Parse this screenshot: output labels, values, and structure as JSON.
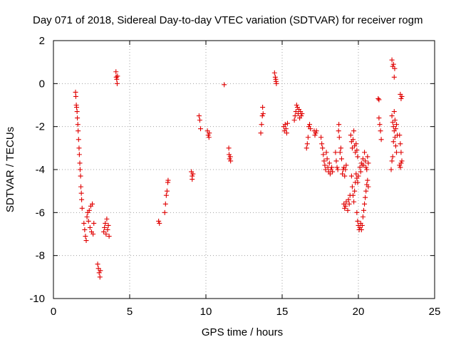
{
  "chart_data": {
    "type": "scatter",
    "title": "Day 071 of 2018, Sidereal Day-to-day VTEC variation (SDTVAR) for receiver rogm",
    "xlabel": "GPS time / hours",
    "ylabel": "SDTVAR / TECUs",
    "xlim": [
      0,
      25
    ],
    "ylim": [
      -10,
      2
    ],
    "xticks": [
      0,
      5,
      10,
      15,
      20,
      25
    ],
    "yticks": [
      -10,
      -8,
      -6,
      -4,
      -2,
      0,
      2
    ],
    "xtick_labels": [
      "0",
      "5",
      "10",
      "15",
      "20",
      "25"
    ],
    "ytick_labels": [
      "-10",
      "-8",
      "-6",
      "-4",
      "-2",
      "0",
      "2"
    ],
    "grid": true,
    "marker": "+",
    "color": "#e00000",
    "series": [
      {
        "name": "SDTVAR",
        "points": [
          [
            1.45,
            -0.4
          ],
          [
            1.47,
            -0.6
          ],
          [
            1.5,
            -1.0
          ],
          [
            1.52,
            -1.1
          ],
          [
            1.55,
            -1.3
          ],
          [
            1.57,
            -1.6
          ],
          [
            1.6,
            -1.9
          ],
          [
            1.62,
            -2.2
          ],
          [
            1.65,
            -2.6
          ],
          [
            1.68,
            -3.0
          ],
          [
            1.7,
            -3.3
          ],
          [
            1.73,
            -3.7
          ],
          [
            1.75,
            -4.0
          ],
          [
            1.78,
            -4.3
          ],
          [
            1.8,
            -4.8
          ],
          [
            1.83,
            -5.1
          ],
          [
            1.85,
            -5.4
          ],
          [
            1.88,
            -5.8
          ],
          [
            2.0,
            -6.5
          ],
          [
            2.05,
            -6.8
          ],
          [
            2.1,
            -7.1
          ],
          [
            2.15,
            -7.3
          ],
          [
            2.2,
            -6.2
          ],
          [
            2.25,
            -6.0
          ],
          [
            2.3,
            -6.4
          ],
          [
            2.35,
            -5.9
          ],
          [
            2.4,
            -6.7
          ],
          [
            2.45,
            -5.7
          ],
          [
            2.5,
            -6.9
          ],
          [
            2.55,
            -5.6
          ],
          [
            2.6,
            -7.0
          ],
          [
            2.65,
            -6.5
          ],
          [
            2.9,
            -8.4
          ],
          [
            2.95,
            -8.6
          ],
          [
            3.0,
            -8.8
          ],
          [
            3.05,
            -9.0
          ],
          [
            3.08,
            -8.7
          ],
          [
            3.3,
            -6.9
          ],
          [
            3.35,
            -6.7
          ],
          [
            3.4,
            -6.5
          ],
          [
            3.45,
            -7.0
          ],
          [
            3.5,
            -6.3
          ],
          [
            3.55,
            -6.8
          ],
          [
            3.6,
            -6.6
          ],
          [
            3.65,
            -7.1
          ],
          [
            4.1,
            0.55
          ],
          [
            4.12,
            0.3
          ],
          [
            4.15,
            0.2
          ],
          [
            4.18,
            0.0
          ],
          [
            4.2,
            0.35
          ],
          [
            6.9,
            -6.4
          ],
          [
            6.95,
            -6.5
          ],
          [
            7.3,
            -6.0
          ],
          [
            7.35,
            -5.6
          ],
          [
            7.4,
            -5.2
          ],
          [
            7.45,
            -5.0
          ],
          [
            7.5,
            -4.6
          ],
          [
            7.52,
            -4.5
          ],
          [
            9.05,
            -4.1
          ],
          [
            9.1,
            -4.3
          ],
          [
            9.15,
            -4.2
          ],
          [
            9.1,
            -4.45
          ],
          [
            9.55,
            -1.5
          ],
          [
            9.6,
            -1.7
          ],
          [
            9.65,
            -2.1
          ],
          [
            10.1,
            -2.2
          ],
          [
            10.15,
            -2.4
          ],
          [
            10.2,
            -2.5
          ],
          [
            10.22,
            -2.3
          ],
          [
            11.2,
            -0.05
          ],
          [
            11.5,
            -3.0
          ],
          [
            11.52,
            -3.3
          ],
          [
            11.55,
            -3.5
          ],
          [
            11.6,
            -3.4
          ],
          [
            11.62,
            -3.6
          ],
          [
            13.6,
            -2.3
          ],
          [
            13.65,
            -1.9
          ],
          [
            13.7,
            -1.5
          ],
          [
            13.72,
            -1.1
          ],
          [
            13.75,
            -1.4
          ],
          [
            14.5,
            0.5
          ],
          [
            14.55,
            0.3
          ],
          [
            14.6,
            0.1
          ],
          [
            14.62,
            0.0
          ],
          [
            14.58,
            0.2
          ],
          [
            15.1,
            -2.0
          ],
          [
            15.15,
            -2.2
          ],
          [
            15.2,
            -1.9
          ],
          [
            15.25,
            -2.1
          ],
          [
            15.3,
            -2.3
          ],
          [
            15.35,
            -1.85
          ],
          [
            15.8,
            -1.7
          ],
          [
            15.85,
            -1.5
          ],
          [
            15.9,
            -1.3
          ],
          [
            15.95,
            -1.0
          ],
          [
            16.0,
            -1.1
          ],
          [
            16.05,
            -1.4
          ],
          [
            16.1,
            -1.2
          ],
          [
            16.15,
            -1.6
          ],
          [
            16.2,
            -1.3
          ],
          [
            16.25,
            -1.5
          ],
          [
            16.3,
            -1.4
          ],
          [
            16.6,
            -3.0
          ],
          [
            16.65,
            -2.8
          ],
          [
            16.7,
            -2.5
          ],
          [
            16.75,
            -2.0
          ],
          [
            16.8,
            -1.9
          ],
          [
            16.85,
            -2.1
          ],
          [
            17.1,
            -2.2
          ],
          [
            17.15,
            -2.4
          ],
          [
            17.2,
            -2.3
          ],
          [
            17.25,
            -2.2
          ],
          [
            17.55,
            -2.5
          ],
          [
            17.6,
            -2.8
          ],
          [
            17.65,
            -3.0
          ],
          [
            17.7,
            -3.3
          ],
          [
            17.75,
            -3.6
          ],
          [
            17.8,
            -3.8
          ],
          [
            17.85,
            -4.0
          ],
          [
            17.9,
            -3.2
          ],
          [
            17.95,
            -3.5
          ],
          [
            18.0,
            -3.9
          ],
          [
            18.05,
            -4.1
          ],
          [
            18.1,
            -3.7
          ],
          [
            18.15,
            -4.2
          ],
          [
            18.2,
            -4.0
          ],
          [
            18.25,
            -3.9
          ],
          [
            18.3,
            -4.1
          ],
          [
            18.5,
            -3.2
          ],
          [
            18.55,
            -3.6
          ],
          [
            18.6,
            -3.9
          ],
          [
            18.65,
            -4.0
          ],
          [
            18.7,
            -2.2
          ],
          [
            18.72,
            -1.9
          ],
          [
            18.75,
            -2.5
          ],
          [
            18.8,
            -3.2
          ],
          [
            18.85,
            -3.0
          ],
          [
            18.9,
            -3.5
          ],
          [
            18.95,
            -4.2
          ],
          [
            19.0,
            -4.0
          ],
          [
            19.05,
            -3.9
          ],
          [
            19.1,
            -4.3
          ],
          [
            19.15,
            -4.0
          ],
          [
            19.2,
            -3.8
          ],
          [
            19.05,
            -5.6
          ],
          [
            19.1,
            -5.8
          ],
          [
            19.15,
            -5.7
          ],
          [
            19.2,
            -5.5
          ],
          [
            19.3,
            -5.9
          ],
          [
            19.35,
            -5.4
          ],
          [
            19.4,
            -5.6
          ],
          [
            19.45,
            -5.2
          ],
          [
            19.5,
            -2.4
          ],
          [
            19.55,
            -2.7
          ],
          [
            19.6,
            -3.0
          ],
          [
            19.65,
            -2.6
          ],
          [
            19.7,
            -2.2
          ],
          [
            19.75,
            -2.9
          ],
          [
            19.8,
            -3.2
          ],
          [
            19.85,
            -2.8
          ],
          [
            19.9,
            -3.1
          ],
          [
            19.95,
            -3.4
          ],
          [
            19.55,
            -4.3
          ],
          [
            19.6,
            -4.8
          ],
          [
            19.65,
            -5.2
          ],
          [
            19.7,
            -5.5
          ],
          [
            19.75,
            -5.0
          ],
          [
            19.8,
            -4.6
          ],
          [
            19.85,
            -4.2
          ],
          [
            19.9,
            -4.4
          ],
          [
            19.95,
            -4.6
          ],
          [
            20.0,
            -4.3
          ],
          [
            19.9,
            -6.0
          ],
          [
            19.95,
            -6.4
          ],
          [
            20.0,
            -6.6
          ],
          [
            20.05,
            -6.8
          ],
          [
            20.1,
            -6.7
          ],
          [
            20.15,
            -6.5
          ],
          [
            20.2,
            -6.8
          ],
          [
            20.25,
            -6.6
          ],
          [
            20.3,
            -6.2
          ],
          [
            20.35,
            -5.9
          ],
          [
            20.4,
            -5.6
          ],
          [
            20.45,
            -5.3
          ],
          [
            20.5,
            -5.0
          ],
          [
            20.55,
            -4.7
          ],
          [
            20.6,
            -4.5
          ],
          [
            20.65,
            -4.8
          ],
          [
            20.1,
            -3.9
          ],
          [
            20.15,
            -4.1
          ],
          [
            20.2,
            -3.7
          ],
          [
            20.25,
            -3.8
          ],
          [
            20.3,
            -3.5
          ],
          [
            20.35,
            -3.8
          ],
          [
            20.4,
            -3.2
          ],
          [
            20.45,
            -3.6
          ],
          [
            20.5,
            -3.9
          ],
          [
            20.55,
            -4.0
          ],
          [
            20.6,
            -3.4
          ],
          [
            20.65,
            -3.7
          ],
          [
            21.3,
            -0.7
          ],
          [
            21.35,
            -0.75
          ],
          [
            21.35,
            -1.6
          ],
          [
            21.4,
            -1.9
          ],
          [
            21.45,
            -2.2
          ],
          [
            21.5,
            -2.6
          ],
          [
            22.2,
            1.1
          ],
          [
            22.25,
            0.8
          ],
          [
            22.3,
            0.9
          ],
          [
            22.35,
            0.3
          ],
          [
            22.38,
            0.7
          ],
          [
            22.2,
            -1.5
          ],
          [
            22.25,
            -1.8
          ],
          [
            22.3,
            -2.0
          ],
          [
            22.35,
            -2.2
          ],
          [
            22.4,
            -2.5
          ],
          [
            22.45,
            -2.9
          ],
          [
            22.5,
            -3.2
          ],
          [
            22.55,
            -2.4
          ],
          [
            22.35,
            -1.3
          ],
          [
            22.4,
            -1.7
          ],
          [
            22.3,
            -2.7
          ],
          [
            22.25,
            -3.4
          ],
          [
            22.2,
            -3.6
          ],
          [
            22.15,
            -4.0
          ],
          [
            22.45,
            -2.1
          ],
          [
            22.5,
            -1.9
          ],
          [
            22.75,
            -0.5
          ],
          [
            22.8,
            -0.7
          ],
          [
            22.85,
            -0.6
          ],
          [
            22.7,
            -2.4
          ],
          [
            22.75,
            -2.8
          ],
          [
            22.8,
            -3.2
          ],
          [
            22.85,
            -3.6
          ],
          [
            22.7,
            -3.8
          ],
          [
            22.75,
            -3.9
          ],
          [
            22.8,
            -3.7
          ]
        ]
      }
    ]
  }
}
